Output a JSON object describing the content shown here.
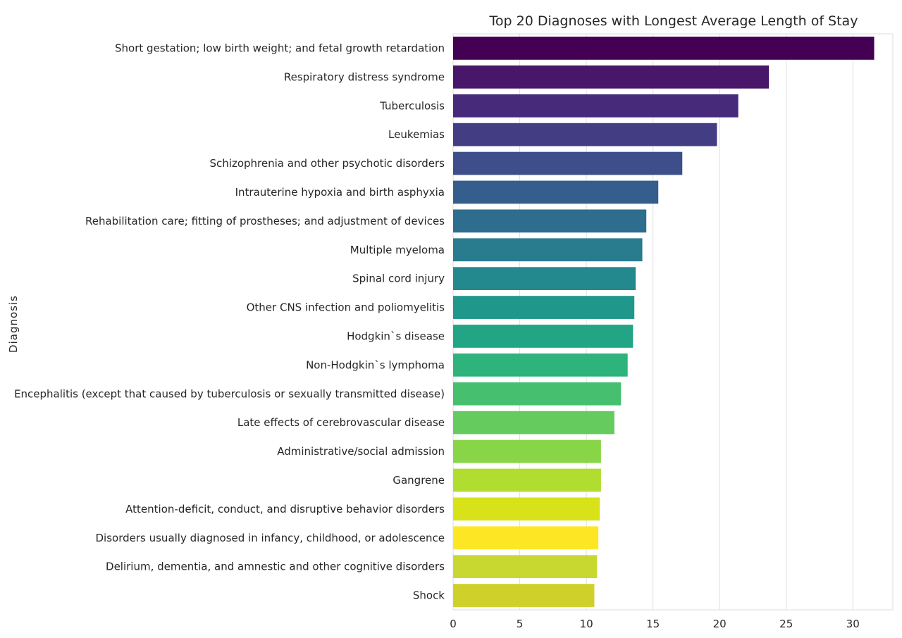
{
  "chart_data": {
    "type": "bar",
    "orientation": "horizontal",
    "title": "Top 20 Diagnoses with Longest Average Length of Stay",
    "xlabel": "",
    "ylabel": "Diagnosis",
    "xlim": [
      0,
      33
    ],
    "x_ticks": [
      0,
      5,
      10,
      15,
      20,
      25,
      30
    ],
    "grid": "vertical",
    "palette": "viridis",
    "categories": [
      "Short gestation; low birth weight; and fetal growth retardation",
      "Respiratory distress syndrome",
      "Tuberculosis",
      "Leukemias",
      "Schizophrenia and other psychotic disorders",
      "Intrauterine hypoxia and birth asphyxia",
      "Rehabilitation care; fitting of prostheses; and adjustment of devices",
      "Multiple myeloma",
      "Spinal cord injury",
      "Other CNS infection and poliomyelitis",
      "Hodgkin`s disease",
      "Non-Hodgkin`s lymphoma",
      "Encephalitis (except that caused by tuberculosis or sexually transmitted disease)",
      "Late effects of cerebrovascular disease",
      "Administrative/social admission",
      "Gangrene",
      "Attention-deficit, conduct, and disruptive behavior disorders",
      "Disorders usually diagnosed in infancy, childhood, or adolescence",
      "Delirium, dementia, and amnestic and other cognitive disorders",
      "Shock"
    ],
    "values": [
      31.6,
      23.7,
      21.4,
      19.8,
      17.2,
      15.4,
      14.5,
      14.2,
      13.7,
      13.6,
      13.5,
      13.1,
      12.6,
      12.1,
      11.1,
      11.1,
      11.0,
      10.9,
      10.8,
      10.6
    ],
    "colors": [
      "#440154",
      "#481769",
      "#472a7a",
      "#433d84",
      "#3d4e8a",
      "#355e8d",
      "#2e6d8e",
      "#297b8e",
      "#23898e",
      "#1f978b",
      "#21a585",
      "#2eb37c",
      "#46c06f",
      "#65cb5e",
      "#89d548",
      "#b0dd2f",
      "#d8e219",
      "#fde725",
      "#c8d830",
      "#cfd12a"
    ]
  }
}
